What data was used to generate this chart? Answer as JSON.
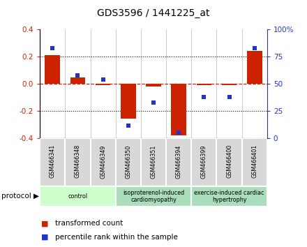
{
  "title": "GDS3596 / 1441225_at",
  "samples": [
    "GSM466341",
    "GSM466348",
    "GSM466349",
    "GSM466350",
    "GSM466351",
    "GSM466394",
    "GSM466399",
    "GSM466400",
    "GSM466401"
  ],
  "bar_values": [
    0.21,
    0.05,
    -0.01,
    -0.255,
    -0.02,
    -0.38,
    -0.01,
    -0.01,
    0.245
  ],
  "scatter_percentiles": [
    83,
    58,
    54,
    12,
    33,
    5,
    38,
    38,
    83
  ],
  "ylim_left": [
    -0.4,
    0.4
  ],
  "ylim_right": [
    0,
    100
  ],
  "yticks_left": [
    -0.4,
    -0.2,
    0.0,
    0.2,
    0.4
  ],
  "yticks_right": [
    0,
    25,
    50,
    75,
    100
  ],
  "bar_color": "#cc2200",
  "scatter_color": "#2233cc",
  "zero_line_color": "#cc2200",
  "group_ranges": [
    [
      0,
      3,
      "control",
      "#ccffcc"
    ],
    [
      3,
      6,
      "isoproterenol-induced\ncardiomyopathy",
      "#aaddbb"
    ],
    [
      6,
      9,
      "exercise-induced cardiac\nhypertrophy",
      "#aaddbb"
    ]
  ],
  "legend_bar_label": "transformed count",
  "legend_scatter_label": "percentile rank within the sample",
  "background_color": "#ffffff"
}
